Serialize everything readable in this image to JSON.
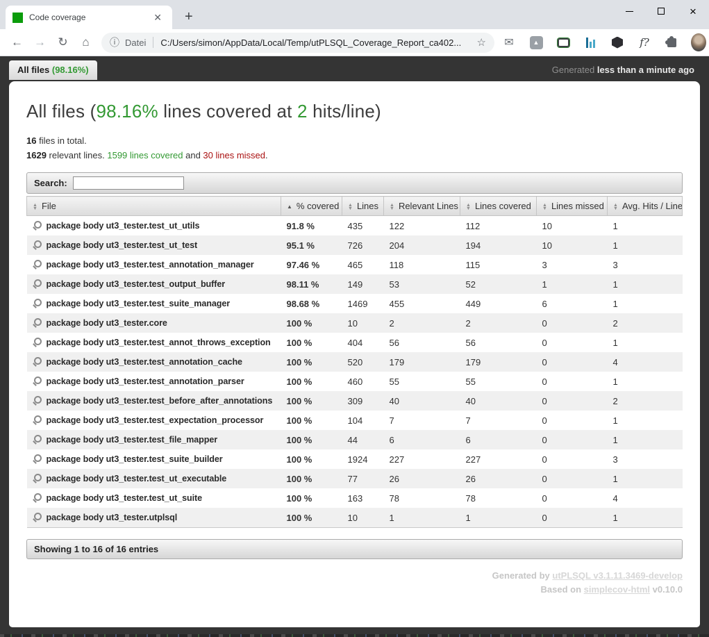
{
  "browser": {
    "tab_title": "Code coverage",
    "url_scheme": "Datei",
    "url": "C:/Users/simon/AppData/Local/Temp/utPLSQL_Coverage_Report_ca402..."
  },
  "page": {
    "tab_label": "All files ",
    "tab_percent": "(98.16%)",
    "generated_label": "Generated ",
    "generated_time": "less than a minute ago",
    "title": {
      "part1": "All files (",
      "percent": "98.16%",
      "part2": " lines covered at ",
      "hits": "2",
      "part3": " hits/line)"
    },
    "summary": {
      "files_count": "16",
      "files_text": " files in total.",
      "relevant_count": "1629",
      "relevant_text": " relevant lines. ",
      "covered_text": "1599 lines covered",
      "and_text": " and ",
      "missed_text": "30 lines missed",
      "period": "."
    },
    "search_label": "Search:",
    "table": {
      "columns": [
        {
          "label": "File"
        },
        {
          "label": "% covered"
        },
        {
          "label": "Lines"
        },
        {
          "label": "Relevant Lines"
        },
        {
          "label": "Lines covered"
        },
        {
          "label": "Lines missed"
        },
        {
          "label": "Avg. Hits / Line"
        }
      ],
      "rows": [
        {
          "file": "package body ut3_tester.test_ut_utils",
          "pct": "91.8 %",
          "lines": "435",
          "relevant": "122",
          "covered": "112",
          "missed": "10",
          "avg": "1"
        },
        {
          "file": "package body ut3_tester.test_ut_test",
          "pct": "95.1 %",
          "lines": "726",
          "relevant": "204",
          "covered": "194",
          "missed": "10",
          "avg": "1"
        },
        {
          "file": "package body ut3_tester.test_annotation_manager",
          "pct": "97.46 %",
          "lines": "465",
          "relevant": "118",
          "covered": "115",
          "missed": "3",
          "avg": "3"
        },
        {
          "file": "package body ut3_tester.test_output_buffer",
          "pct": "98.11 %",
          "lines": "149",
          "relevant": "53",
          "covered": "52",
          "missed": "1",
          "avg": "1"
        },
        {
          "file": "package body ut3_tester.test_suite_manager",
          "pct": "98.68 %",
          "lines": "1469",
          "relevant": "455",
          "covered": "449",
          "missed": "6",
          "avg": "1"
        },
        {
          "file": "package body ut3_tester.core",
          "pct": "100 %",
          "lines": "10",
          "relevant": "2",
          "covered": "2",
          "missed": "0",
          "avg": "2"
        },
        {
          "file": "package body ut3_tester.test_annot_throws_exception",
          "pct": "100 %",
          "lines": "404",
          "relevant": "56",
          "covered": "56",
          "missed": "0",
          "avg": "1"
        },
        {
          "file": "package body ut3_tester.test_annotation_cache",
          "pct": "100 %",
          "lines": "520",
          "relevant": "179",
          "covered": "179",
          "missed": "0",
          "avg": "4"
        },
        {
          "file": "package body ut3_tester.test_annotation_parser",
          "pct": "100 %",
          "lines": "460",
          "relevant": "55",
          "covered": "55",
          "missed": "0",
          "avg": "1"
        },
        {
          "file": "package body ut3_tester.test_before_after_annotations",
          "pct": "100 %",
          "lines": "309",
          "relevant": "40",
          "covered": "40",
          "missed": "0",
          "avg": "2"
        },
        {
          "file": "package body ut3_tester.test_expectation_processor",
          "pct": "100 %",
          "lines": "104",
          "relevant": "7",
          "covered": "7",
          "missed": "0",
          "avg": "1"
        },
        {
          "file": "package body ut3_tester.test_file_mapper",
          "pct": "100 %",
          "lines": "44",
          "relevant": "6",
          "covered": "6",
          "missed": "0",
          "avg": "1"
        },
        {
          "file": "package body ut3_tester.test_suite_builder",
          "pct": "100 %",
          "lines": "1924",
          "relevant": "227",
          "covered": "227",
          "missed": "0",
          "avg": "3"
        },
        {
          "file": "package body ut3_tester.test_ut_executable",
          "pct": "100 %",
          "lines": "77",
          "relevant": "26",
          "covered": "26",
          "missed": "0",
          "avg": "1"
        },
        {
          "file": "package body ut3_tester.test_ut_suite",
          "pct": "100 %",
          "lines": "163",
          "relevant": "78",
          "covered": "78",
          "missed": "0",
          "avg": "4"
        },
        {
          "file": "package body ut3_tester.utplsql",
          "pct": "100 %",
          "lines": "10",
          "relevant": "1",
          "covered": "1",
          "missed": "0",
          "avg": "1"
        }
      ]
    },
    "showing_text": "Showing 1 to 16 of 16 entries",
    "footer": {
      "generated_by": "Generated by ",
      "generator_link": "utPLSQL v3.1.11.3469-develop",
      "based_on": "Based on ",
      "based_link": "simplecov-html",
      "based_version": " v0.10.0"
    },
    "colors": {
      "green": "#339933",
      "red": "#aa1111",
      "favicon_green": "#0b9c0b",
      "page_background": "#343434"
    }
  }
}
